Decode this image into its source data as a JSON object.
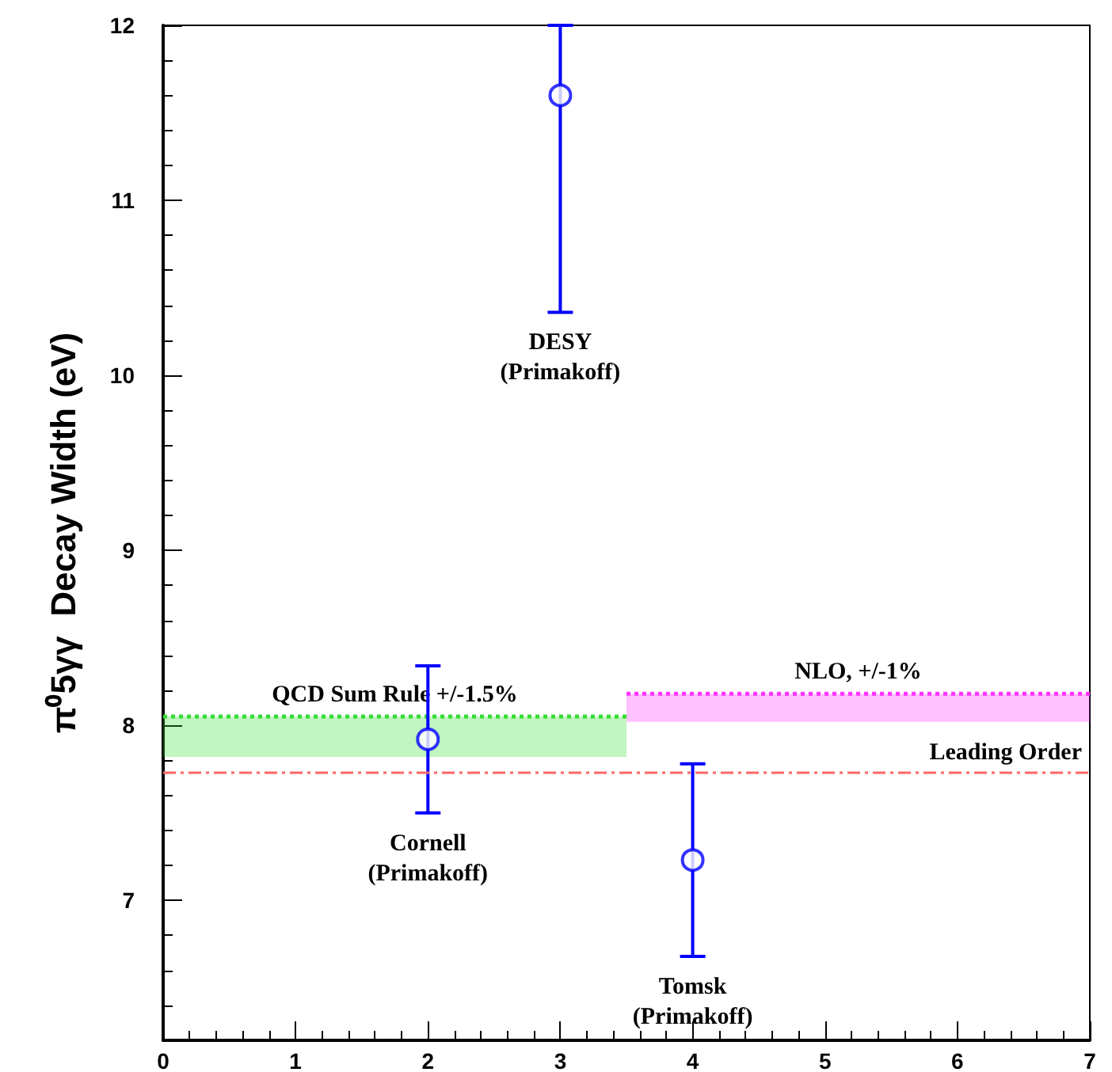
{
  "chart_data": {
    "type": "scatter",
    "ylabel": "π⁰5γγ  Decay Width (eV)",
    "xlim": [
      0,
      7
    ],
    "xticks": [
      0,
      1,
      2,
      3,
      4,
      5,
      6,
      7
    ],
    "ylim": [
      6.2,
      12
    ],
    "yticks": [
      7,
      8,
      9,
      10,
      11,
      12
    ],
    "grid": false,
    "legend": false,
    "marker": "circle",
    "series": [
      {
        "color": "#0000ff",
        "x": [
          2,
          3,
          4
        ],
        "values": [
          7.92,
          11.6,
          7.23
        ],
        "errors": [
          [
            7.5,
            8.34
          ],
          [
            10.36,
            12.0
          ],
          [
            6.68,
            7.78
          ]
        ]
      },
      {
        "type": "line",
        "name": "QCD Sum Rule +/-1.5%",
        "color": "#33dd33",
        "marker": "none",
        "line_style": "dotted",
        "x": [
          0,
          3.5
        ],
        "values": [
          8.05,
          8.05
        ],
        "lower": [
          7.82,
          7.82
        ],
        "upper": [
          8.05,
          8.05
        ]
      },
      {
        "type": "line",
        "name": "NLO, +/-1%",
        "color": "#ff33ff",
        "marker": "none",
        "line_style": "dotted",
        "x": [
          3.5,
          7
        ],
        "values": [
          8.18,
          8.18
        ],
        "lower": [
          8.02,
          8.02
        ],
        "upper": [
          8.18,
          8.18
        ]
      }
    ],
    "ref_lines": [
      {
        "axis": "y",
        "value": 7.73,
        "label": "Leading Order",
        "color": "#ff6666",
        "line_style": "dashed"
      }
    ],
    "annotations": [
      "Cornell\n(Primakoff)",
      "DESY\n(Primakoff)",
      "Tomsk\n(Primakoff)"
    ]
  }
}
